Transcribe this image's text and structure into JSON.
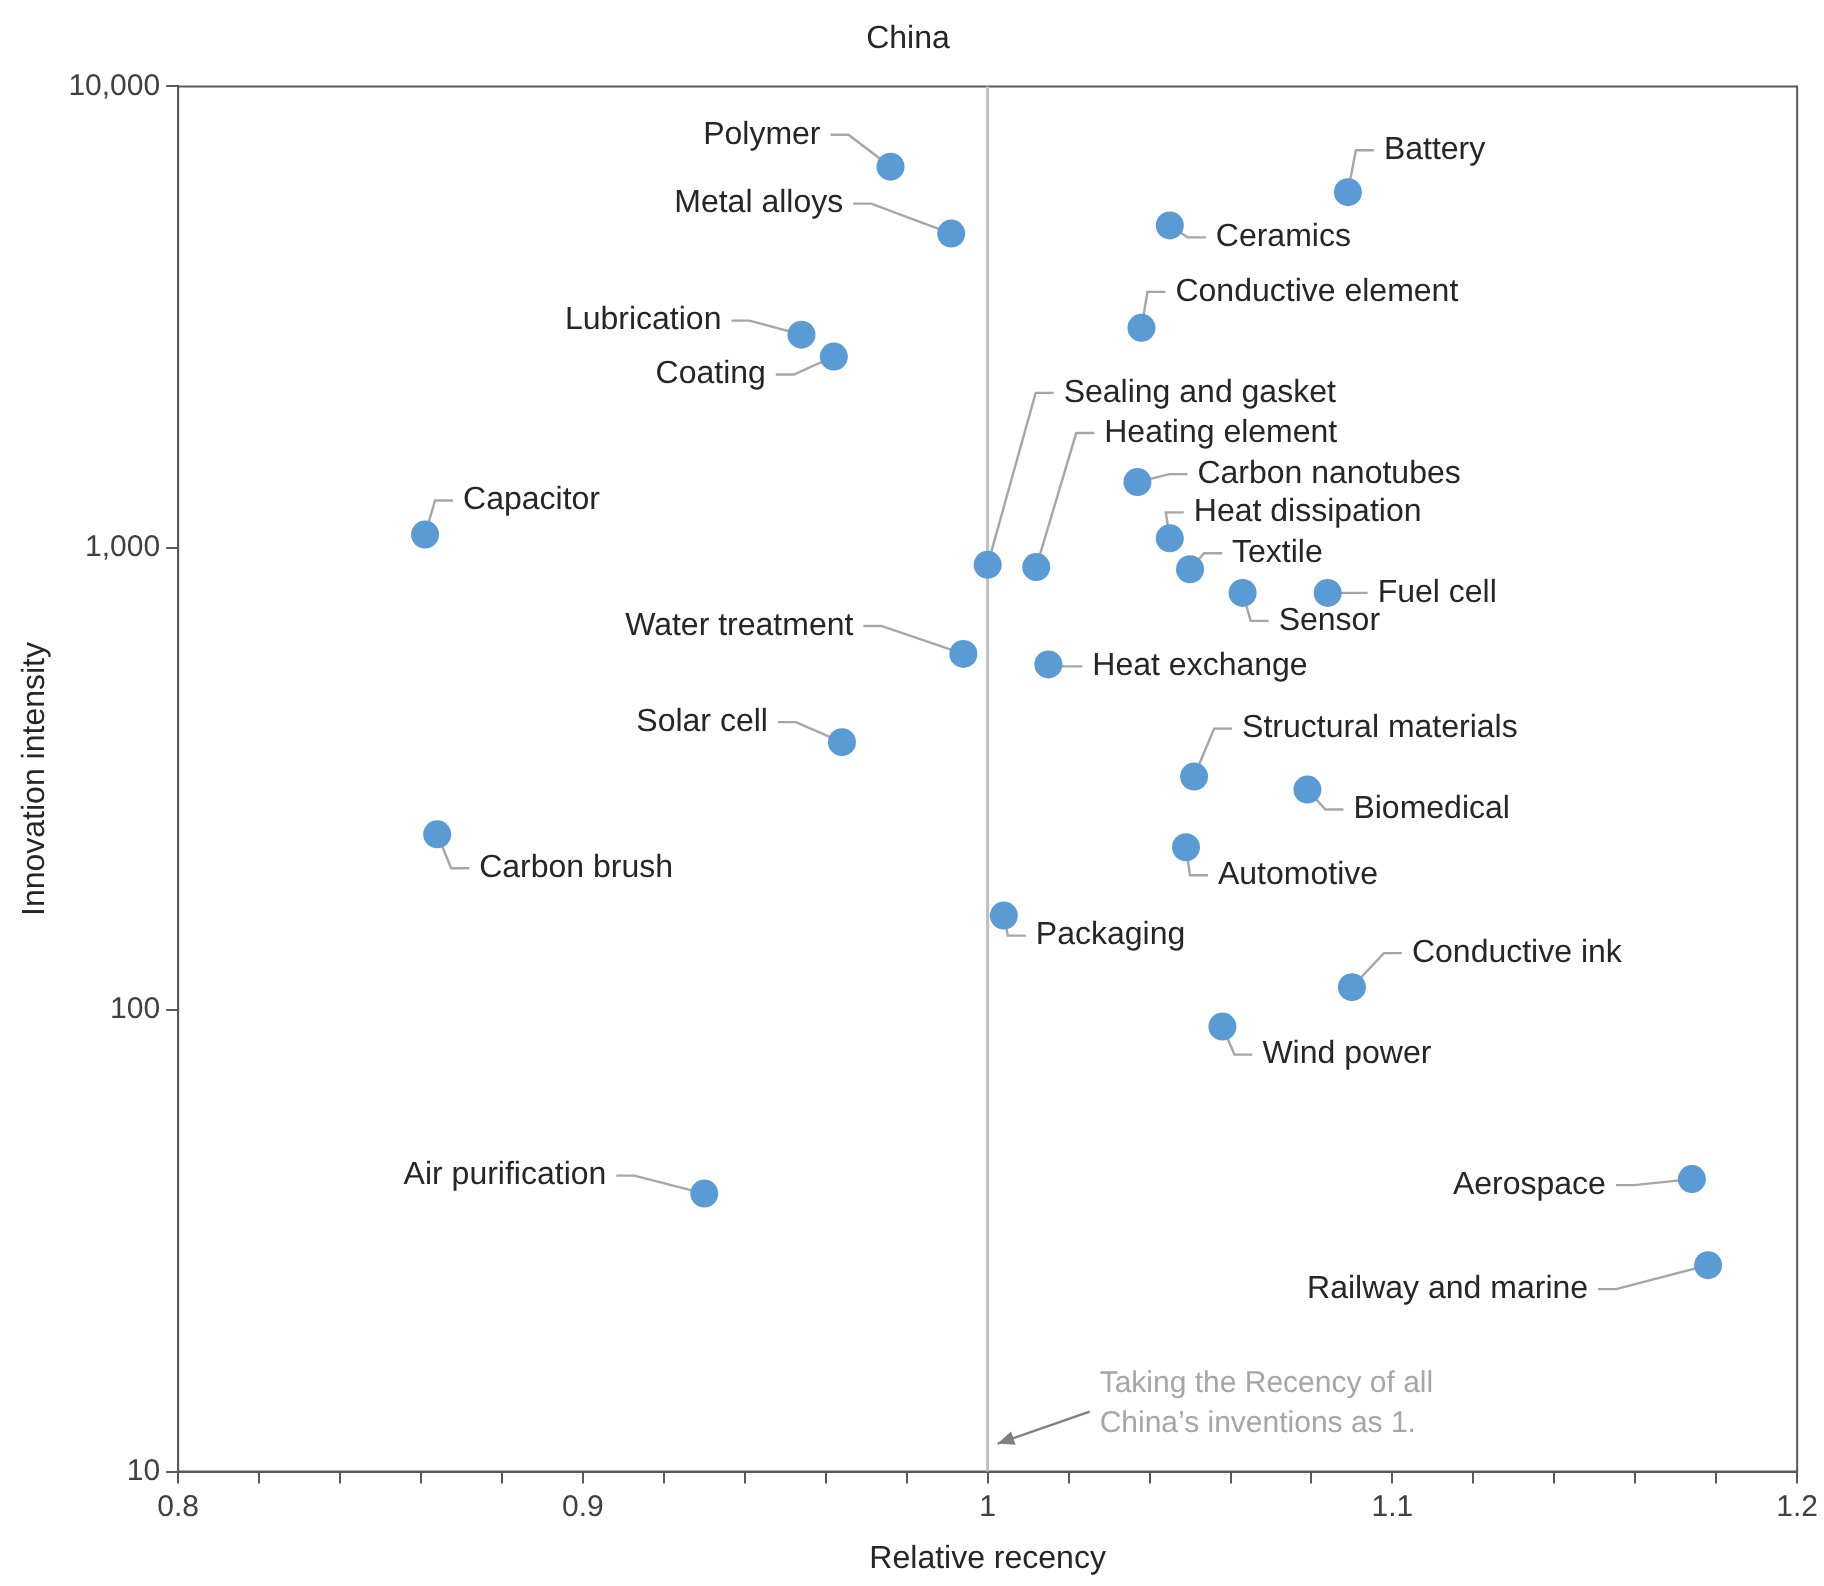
{
  "chart_data": {
    "type": "scatter",
    "title": "China",
    "xlabel": "Relative recency",
    "ylabel": "Innovation intensity",
    "x": [
      0.976,
      0.991,
      1.089,
      1.045,
      1.038,
      0.954,
      0.962,
      0.861,
      1.0,
      1.012,
      1.037,
      1.045,
      1.05,
      1.063,
      1.084,
      0.994,
      1.015,
      0.964,
      1.051,
      1.079,
      0.864,
      1.049,
      1.004,
      1.09,
      1.058,
      1.174,
      1.178,
      0.93
    ],
    "series": [
      {
        "color": "#5b9bd5",
        "values": [
          6700,
          4800,
          5900,
          5000,
          3000,
          2900,
          2600,
          1070,
          920,
          910,
          1390,
          1050,
          900,
          800,
          800,
          590,
          560,
          380,
          320,
          300,
          240,
          225,
          160,
          112,
          92,
          43,
          28,
          40
        ]
      }
    ],
    "marker": "circle",
    "log": "y",
    "xlim": [
      0.8,
      1.2
    ],
    "xticks": [
      0.8,
      {
        "value": 0.82,
        "label": null
      },
      {
        "value": 0.84,
        "label": null
      },
      {
        "value": 0.86,
        "label": null
      },
      {
        "value": 0.88,
        "label": null
      },
      0.9,
      {
        "value": 0.92,
        "label": null
      },
      {
        "value": 0.94,
        "label": null
      },
      {
        "value": 0.96,
        "label": null
      },
      {
        "value": 0.98,
        "label": null
      },
      1,
      {
        "value": 1.02,
        "label": null
      },
      {
        "value": 1.04,
        "label": null
      },
      {
        "value": 1.06,
        "label": null
      },
      {
        "value": 1.08,
        "label": null
      },
      1.1,
      {
        "value": 1.12,
        "label": null
      },
      {
        "value": 1.14,
        "label": null
      },
      {
        "value": 1.16,
        "label": null
      },
      {
        "value": 1.18,
        "label": null
      },
      1.2
    ],
    "ylim": [
      10,
      10000
    ],
    "yticks": [
      10,
      100,
      {
        "value": 1000,
        "label": "1,000"
      },
      {
        "value": 10000,
        "label": "10,000"
      }
    ],
    "grid": false,
    "legend": false,
    "ref_lines": [
      {
        "axis": "x",
        "value": 1,
        "color": "#bfbfbf"
      }
    ],
    "annotations": [
      {
        "text": "Polymer",
        "x": 0.976,
        "y": 6700
      },
      {
        "text": "Metal alloys",
        "x": 0.991,
        "y": 4800
      },
      {
        "text": "Battery",
        "x": 1.089,
        "y": 5900
      },
      {
        "text": "Ceramics",
        "x": 1.045,
        "y": 5000
      },
      {
        "text": "Conductive element",
        "x": 1.038,
        "y": 3000
      },
      {
        "text": "Lubrication",
        "x": 0.954,
        "y": 2900
      },
      {
        "text": "Coating",
        "x": 0.962,
        "y": 2600
      },
      {
        "text": "Capacitor",
        "x": 0.861,
        "y": 1070
      },
      {
        "text": "Sealing and gasket",
        "x": 1.0,
        "y": 920
      },
      {
        "text": "Heating element",
        "x": 1.012,
        "y": 910
      },
      {
        "text": "Carbon nanotubes",
        "x": 1.037,
        "y": 1390
      },
      {
        "text": "Heat dissipation",
        "x": 1.045,
        "y": 1050
      },
      {
        "text": "Textile",
        "x": 1.05,
        "y": 900
      },
      {
        "text": "Sensor",
        "x": 1.063,
        "y": 800
      },
      {
        "text": "Fuel cell",
        "x": 1.084,
        "y": 800
      },
      {
        "text": "Water treatment",
        "x": 0.994,
        "y": 590
      },
      {
        "text": "Heat exchange",
        "x": 1.015,
        "y": 560
      },
      {
        "text": "Solar cell",
        "x": 0.964,
        "y": 380
      },
      {
        "text": "Structural materials",
        "x": 1.051,
        "y": 320
      },
      {
        "text": "Biomedical",
        "x": 1.079,
        "y": 300
      },
      {
        "text": "Carbon brush",
        "x": 0.864,
        "y": 240
      },
      {
        "text": "Automotive",
        "x": 1.049,
        "y": 225
      },
      {
        "text": "Packaging",
        "x": 1.004,
        "y": 160
      },
      {
        "text": "Conductive ink",
        "x": 1.09,
        "y": 112
      },
      {
        "text": "Wind power",
        "x": 1.058,
        "y": 92
      },
      {
        "text": "Aerospace",
        "x": 1.174,
        "y": 43
      },
      {
        "text": "Railway and marine",
        "x": 1.178,
        "y": 28
      },
      {
        "text": "Air purification",
        "x": 0.93,
        "y": 40
      },
      "Taking the Recency of all China’s inventions as 1."
    ]
  }
}
